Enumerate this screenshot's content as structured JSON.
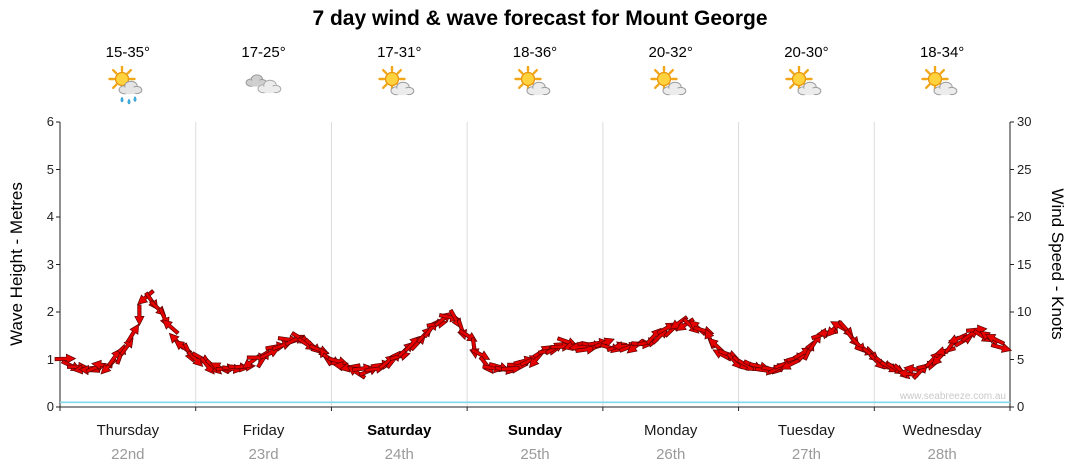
{
  "title": "7 day wind & wave forecast for Mount George",
  "watermark": "www.seabreeze.com.au",
  "days": [
    {
      "name": "Thursday",
      "date": "22nd",
      "temp": "15-35°",
      "icon": "sun-cloud-showers",
      "bold": false
    },
    {
      "name": "Friday",
      "date": "23rd",
      "temp": "17-25°",
      "icon": "cloud",
      "bold": false
    },
    {
      "name": "Saturday",
      "date": "24th",
      "temp": "17-31°",
      "icon": "sun-cloud",
      "bold": true
    },
    {
      "name": "Sunday",
      "date": "25th",
      "temp": "18-36°",
      "icon": "sun-cloud",
      "bold": true
    },
    {
      "name": "Monday",
      "date": "26th",
      "temp": "20-32°",
      "icon": "sun-cloud",
      "bold": false
    },
    {
      "name": "Tuesday",
      "date": "27th",
      "temp": "20-30°",
      "icon": "sun-cloud",
      "bold": false
    },
    {
      "name": "Wednesday",
      "date": "28th",
      "temp": "18-34°",
      "icon": "sun-cloud",
      "bold": false
    }
  ],
  "chart_data": {
    "type": "line",
    "title": "7 day wind & wave forecast for Mount George",
    "samples_per_day": 8,
    "grid": "vertical-day-boundaries",
    "left_axis": {
      "label": "Wave Height - Metres",
      "min": 0,
      "max": 6,
      "ticks": [
        0,
        1,
        2,
        3,
        4,
        5,
        6
      ]
    },
    "right_axis": {
      "label": "Wind Speed - Knots",
      "min": 0,
      "max": 30,
      "ticks": [
        0,
        5,
        10,
        15,
        20,
        25,
        30
      ]
    },
    "series": [
      {
        "name": "Wind Speed",
        "unit": "knots",
        "axis": "right",
        "style": "wind-arrows",
        "color": "#e60000",
        "values": [
          5.0,
          4.2,
          4.0,
          4.6,
          6.5,
          11.5,
          10.0,
          6.8,
          5.2,
          4.3,
          4.0,
          4.4,
          5.2,
          6.6,
          7.2,
          6.4,
          5.0,
          4.0,
          3.8,
          4.5,
          5.5,
          6.8,
          8.5,
          9.8,
          7.5,
          4.8,
          4.0,
          4.3,
          5.2,
          6.4,
          6.8,
          6.3,
          6.5,
          6.3,
          6.6,
          7.2,
          8.3,
          9.0,
          8.0,
          5.8,
          4.8,
          4.2,
          3.8,
          4.5,
          6.0,
          7.6,
          8.6,
          6.5,
          5.0,
          4.3,
          3.6,
          4.2,
          5.5,
          7.0,
          8.0,
          7.0,
          5.8
        ]
      },
      {
        "name": "Wave Height",
        "unit": "metres",
        "axis": "left",
        "style": "line",
        "color": "#82d8ec",
        "values": [
          0.1,
          0.1,
          0.1,
          0.1,
          0.1,
          0.1,
          0.1,
          0.1,
          0.1,
          0.1,
          0.1,
          0.1,
          0.1,
          0.1,
          0.1,
          0.1,
          0.1,
          0.1,
          0.1,
          0.1,
          0.1,
          0.1,
          0.1,
          0.1,
          0.1,
          0.1,
          0.1,
          0.1,
          0.1,
          0.1,
          0.1,
          0.1,
          0.1,
          0.1,
          0.1,
          0.1,
          0.1,
          0.1,
          0.1,
          0.1,
          0.1,
          0.1,
          0.1,
          0.1,
          0.1,
          0.1,
          0.1,
          0.1,
          0.1,
          0.1,
          0.1,
          0.1,
          0.1,
          0.1,
          0.1,
          0.1,
          0.1
        ]
      }
    ]
  }
}
